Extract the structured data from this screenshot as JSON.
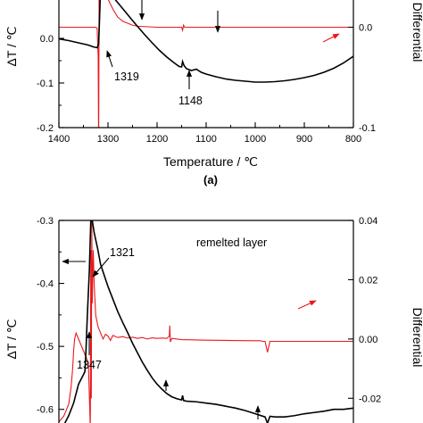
{
  "chart_data": [
    {
      "type": "line",
      "panel_label": "(a)",
      "xlabel": "Temperature / ℃",
      "ylabel": "ΔT / ℃",
      "y2label": "Differential",
      "xlim": [
        1400,
        800
      ],
      "ylim": [
        -0.2,
        0.1
      ],
      "y2lim": [
        -0.1,
        0.06
      ],
      "x_ticks": [
        1400,
        1300,
        1200,
        1100,
        1000,
        900,
        800
      ],
      "y_ticks": [
        -0.2,
        -0.1,
        0.0
      ],
      "y_tick_labels": [
        "-0.2",
        "-0.1",
        "0.0"
      ],
      "y2_ticks": [
        -0.1,
        0.0
      ],
      "y2_tick_labels": [
        "-0.1",
        "0.0"
      ],
      "series": [
        {
          "color": "#000000",
          "axis": "left",
          "x": [
            1400,
            1380,
            1360,
            1340,
            1330,
            1322,
            1319,
            1317,
            1315,
            1312,
            1305,
            1295,
            1280,
            1265,
            1250,
            1240,
            1225,
            1210,
            1195,
            1180,
            1165,
            1155,
            1150,
            1148,
            1145,
            1140,
            1130,
            1120,
            1110,
            1100,
            1080,
            1060,
            1040,
            1020,
            1000,
            980,
            960,
            940,
            920,
            900,
            880,
            860,
            840,
            820,
            800
          ],
          "y": [
            -0.001,
            -0.005,
            -0.01,
            -0.015,
            -0.019,
            -0.021,
            -0.012,
            0.05,
            0.12,
            0.14,
            0.12,
            0.1,
            0.08,
            0.06,
            0.04,
            0.027,
            0.008,
            -0.01,
            -0.027,
            -0.042,
            -0.055,
            -0.063,
            -0.064,
            -0.052,
            -0.061,
            -0.068,
            -0.072,
            -0.069,
            -0.076,
            -0.08,
            -0.086,
            -0.091,
            -0.094,
            -0.096,
            -0.098,
            -0.098,
            -0.097,
            -0.095,
            -0.092,
            -0.088,
            -0.083,
            -0.076,
            -0.067,
            -0.055,
            -0.04
          ]
        },
        {
          "color": "#e8191e",
          "axis": "right",
          "x": [
            1400,
            1380,
            1360,
            1340,
            1330,
            1325,
            1322,
            1320,
            1319,
            1318,
            1317,
            1316,
            1315,
            1310,
            1300,
            1290,
            1280,
            1270,
            1260,
            1250,
            1240,
            1200,
            1150,
            1148,
            1146,
            1144,
            1140,
            1100,
            1000,
            900,
            800
          ],
          "y": [
            0.0,
            0.0,
            0.0,
            0.0,
            0.0,
            0.0,
            -0.001,
            -0.03,
            -0.12,
            0.05,
            0.08,
            0.07,
            0.05,
            0.04,
            0.028,
            0.018,
            0.01,
            0.006,
            0.004,
            0.002,
            0.001,
            0.0,
            0.0,
            -0.003,
            0.002,
            0.0,
            0.0,
            0.0,
            0.0,
            0.0,
            0.0
          ]
        }
      ],
      "annotations": [
        {
          "text": "1319",
          "x": 1319,
          "y": -0.021
        },
        {
          "text": "1148",
          "x": 1148,
          "y": -0.064
        }
      ]
    },
    {
      "type": "line",
      "title": "remelted layer",
      "ylabel": "ΔT / ℃",
      "y2label": "Differential",
      "xlim": [
        1400,
        800
      ],
      "ylim": [
        -0.65,
        -0.3
      ],
      "y2lim": [
        -0.03,
        0.04
      ],
      "y_ticks": [
        -0.6,
        -0.5,
        -0.4,
        -0.3
      ],
      "y_tick_labels": [
        "-0.6",
        "-0.5",
        "-0.4",
        "-0.3"
      ],
      "y2_ticks": [
        -0.02,
        0.0,
        0.02,
        0.04
      ],
      "y2_tick_labels": [
        "-0.02",
        "0.00",
        "0.02",
        "0.04"
      ],
      "series": [
        {
          "color": "#000000",
          "axis": "left",
          "x": [
            1400,
            1390,
            1380,
            1370,
            1360,
            1350,
            1347,
            1345,
            1342,
            1338,
            1335,
            1332,
            1328,
            1321,
            1315,
            1300,
            1290,
            1280,
            1270,
            1260,
            1250,
            1240,
            1230,
            1220,
            1210,
            1200,
            1190,
            1180,
            1170,
            1160,
            1150,
            1148,
            1146,
            1140,
            1120,
            1100,
            1080,
            1060,
            1040,
            1020,
            1000,
            980,
            975,
            970,
            960,
            940,
            920,
            900,
            880,
            860,
            840,
            820,
            800
          ],
          "y": [
            -0.63,
            -0.625,
            -0.61,
            -0.59,
            -0.56,
            -0.545,
            -0.54,
            -0.51,
            -0.45,
            -0.38,
            -0.3,
            -0.3,
            -0.32,
            -0.345,
            -0.37,
            -0.405,
            -0.425,
            -0.445,
            -0.462,
            -0.478,
            -0.495,
            -0.51,
            -0.525,
            -0.538,
            -0.55,
            -0.56,
            -0.568,
            -0.575,
            -0.58,
            -0.583,
            -0.585,
            -0.578,
            -0.586,
            -0.587,
            -0.588,
            -0.59,
            -0.592,
            -0.595,
            -0.598,
            -0.602,
            -0.607,
            -0.612,
            -0.622,
            -0.611,
            -0.612,
            -0.612,
            -0.61,
            -0.607,
            -0.605,
            -0.603,
            -0.6,
            -0.6,
            -0.598
          ]
        },
        {
          "color": "#e8191e",
          "axis": "right",
          "x": [
            1400,
            1390,
            1380,
            1375,
            1372,
            1370,
            1368,
            1365,
            1360,
            1355,
            1350,
            1345,
            1340,
            1336,
            1335,
            1334,
            1333,
            1332,
            1330,
            1328,
            1325,
            1320,
            1315,
            1310,
            1305,
            1300,
            1295,
            1290,
            1280,
            1270,
            1260,
            1250,
            1240,
            1230,
            1220,
            1210,
            1200,
            1190,
            1180,
            1175,
            1174,
            1173,
            1170,
            1150,
            1100,
            1050,
            1000,
            990,
            985,
            980,
            975,
            970,
            960,
            940,
            920,
            900,
            880,
            860,
            840,
            820,
            800
          ],
          "y": [
            -0.028,
            -0.026,
            -0.022,
            -0.016,
            -0.01,
            -0.004,
            0.0,
            0.002,
            0.0,
            -0.002,
            -0.004,
            -0.006,
            -0.008,
            -0.03,
            0.03,
            -0.02,
            0.04,
            0.012,
            0.03,
            0.018,
            0.008,
            0.004,
            0.002,
            0.0,
            0.0016,
            0.001,
            -0.0005,
            0.0012,
            0.0005,
            0.0008,
            0.0003,
            0.0006,
            0.0002,
            0.0005,
            0.0,
            0.0004,
            0.0002,
            0.0003,
            0.0002,
            0.001,
            0.0045,
            -0.001,
            0.0002,
            -0.0002,
            -0.0004,
            -0.0005,
            -0.0006,
            -0.0006,
            -0.0008,
            -0.0008,
            -0.0045,
            -0.0008,
            -0.0008,
            -0.0008,
            -0.0008,
            -0.0008,
            -0.0008,
            -0.0008,
            -0.0008,
            -0.0008,
            -0.0008
          ]
        }
      ],
      "annotations": [
        {
          "text": "1321",
          "x": 1321,
          "y": -0.345
        },
        {
          "text": "1347",
          "x": 1347,
          "y": -0.54
        }
      ]
    }
  ]
}
